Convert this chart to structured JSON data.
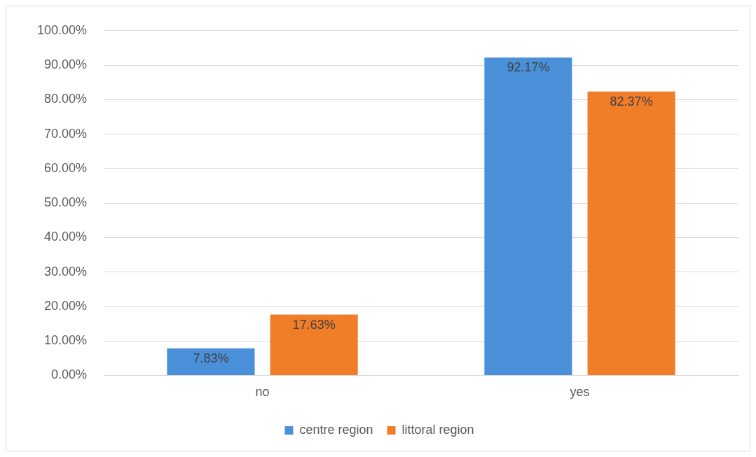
{
  "chart_data": {
    "type": "bar",
    "categories": [
      "no",
      "yes"
    ],
    "series": [
      {
        "name": "centre region",
        "color": "#4a90d9",
        "values": [
          7.83,
          92.17
        ],
        "value_labels": [
          "7.83%",
          "92.17%"
        ]
      },
      {
        "name": "littoral region",
        "color": "#f07d28",
        "values": [
          17.63,
          82.37
        ],
        "value_labels": [
          "17.63%",
          "82.37%"
        ]
      }
    ],
    "ylim": [
      0,
      100
    ],
    "yticks": [
      {
        "value": 0,
        "label": "0.00%"
      },
      {
        "value": 10,
        "label": "10.00%"
      },
      {
        "value": 20,
        "label": "20.00%"
      },
      {
        "value": 30,
        "label": "30.00%"
      },
      {
        "value": 40,
        "label": "40.00%"
      },
      {
        "value": 50,
        "label": "50.00%"
      },
      {
        "value": 60,
        "label": "60.00%"
      },
      {
        "value": 70,
        "label": "70.00%"
      },
      {
        "value": 80,
        "label": "80.00%"
      },
      {
        "value": 90,
        "label": "90.00%"
      },
      {
        "value": 100,
        "label": "100.00%"
      }
    ],
    "grid": "y",
    "legend": "bottom"
  }
}
